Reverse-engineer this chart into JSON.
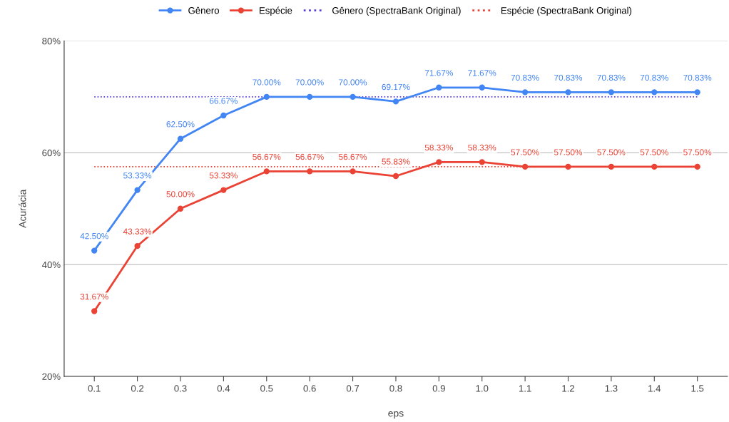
{
  "chart_data": {
    "type": "line",
    "xlabel": "eps",
    "ylabel": "Acurácia",
    "categories": [
      "0.1",
      "0.2",
      "0.3",
      "0.4",
      "0.5",
      "0.6",
      "0.7",
      "0.8",
      "0.9",
      "1.0",
      "1.1",
      "1.2",
      "1.3",
      "1.4",
      "1.5"
    ],
    "ylim": [
      20,
      80
    ],
    "yticks": [
      {
        "value": 20,
        "label": "20%"
      },
      {
        "value": 40,
        "label": "40%"
      },
      {
        "value": 60,
        "label": "60%"
      },
      {
        "value": 80,
        "label": "80%"
      }
    ],
    "grid": "y",
    "legend": "top",
    "marker": "circle",
    "line_style": "solid",
    "series": [
      {
        "name": "Gênero",
        "color": "#4285f4",
        "values": [
          42.5,
          53.33,
          62.5,
          66.67,
          70.0,
          70.0,
          70.0,
          69.17,
          71.67,
          71.67,
          70.83,
          70.83,
          70.83,
          70.83,
          70.83
        ],
        "value_labels": [
          "42.50%",
          "53.33%",
          "62.50%",
          "66.67%",
          "70.00%",
          "70.00%",
          "70.00%",
          "69.17%",
          "71.67%",
          "71.67%",
          "70.83%",
          "70.83%",
          "70.83%",
          "70.83%",
          "70.83%"
        ]
      },
      {
        "name": "Espécie",
        "color": "#ea4335",
        "values": [
          31.67,
          43.33,
          50.0,
          53.33,
          56.67,
          56.67,
          56.67,
          55.83,
          58.33,
          58.33,
          57.5,
          57.5,
          57.5,
          57.5,
          57.5
        ],
        "value_labels": [
          "31.67%",
          "43.33%",
          "50.00%",
          "53.33%",
          "56.67%",
          "56.67%",
          "56.67%",
          "55.83%",
          "58.33%",
          "58.33%",
          "57.50%",
          "57.50%",
          "57.50%",
          "57.50%",
          "57.50%"
        ]
      },
      {
        "name": "Gênero (SpectraBank Original)",
        "color": "#5b3fd9",
        "marker": "none",
        "line_style": "dotted",
        "values": [
          70,
          70,
          70,
          70,
          70,
          70,
          70,
          70,
          70,
          70,
          70,
          70,
          70,
          70,
          70
        ]
      },
      {
        "name": "Espécie (SpectraBank Original)",
        "color": "#ea4335",
        "marker": "none",
        "line_style": "dotted",
        "values": [
          57.5,
          57.5,
          57.5,
          57.5,
          57.5,
          57.5,
          57.5,
          57.5,
          57.5,
          57.5,
          57.5,
          57.5,
          57.5,
          57.5,
          57.5
        ]
      }
    ]
  }
}
